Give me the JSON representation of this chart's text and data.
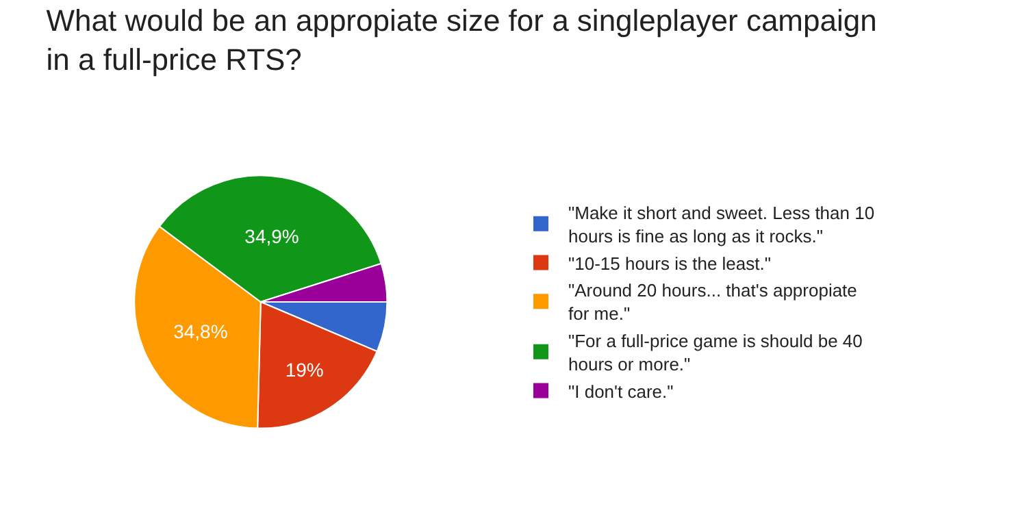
{
  "chart_data": {
    "type": "pie",
    "title": "What would be an appropiate size for a singleplayer campaign in a full-price RTS?",
    "categories": [
      "\"Make it short and sweet. Less than 10 hours is fine as long as it rocks.\"",
      "\"10-15 hours is the least.\"",
      "\"Around 20 hours... that's appropiate for me.\"",
      "\"For a full-price game is should be 40 hours or more.\"",
      "\"I don't care.\""
    ],
    "values": [
      6.4,
      19,
      34.8,
      34.9,
      4.9
    ],
    "value_labels": [
      null,
      "19%",
      "34,8%",
      "34,9%",
      null
    ],
    "colors": [
      "#3366cc",
      "#dc3912",
      "#ff9900",
      "#109618",
      "#990099"
    ],
    "legend": "right"
  }
}
